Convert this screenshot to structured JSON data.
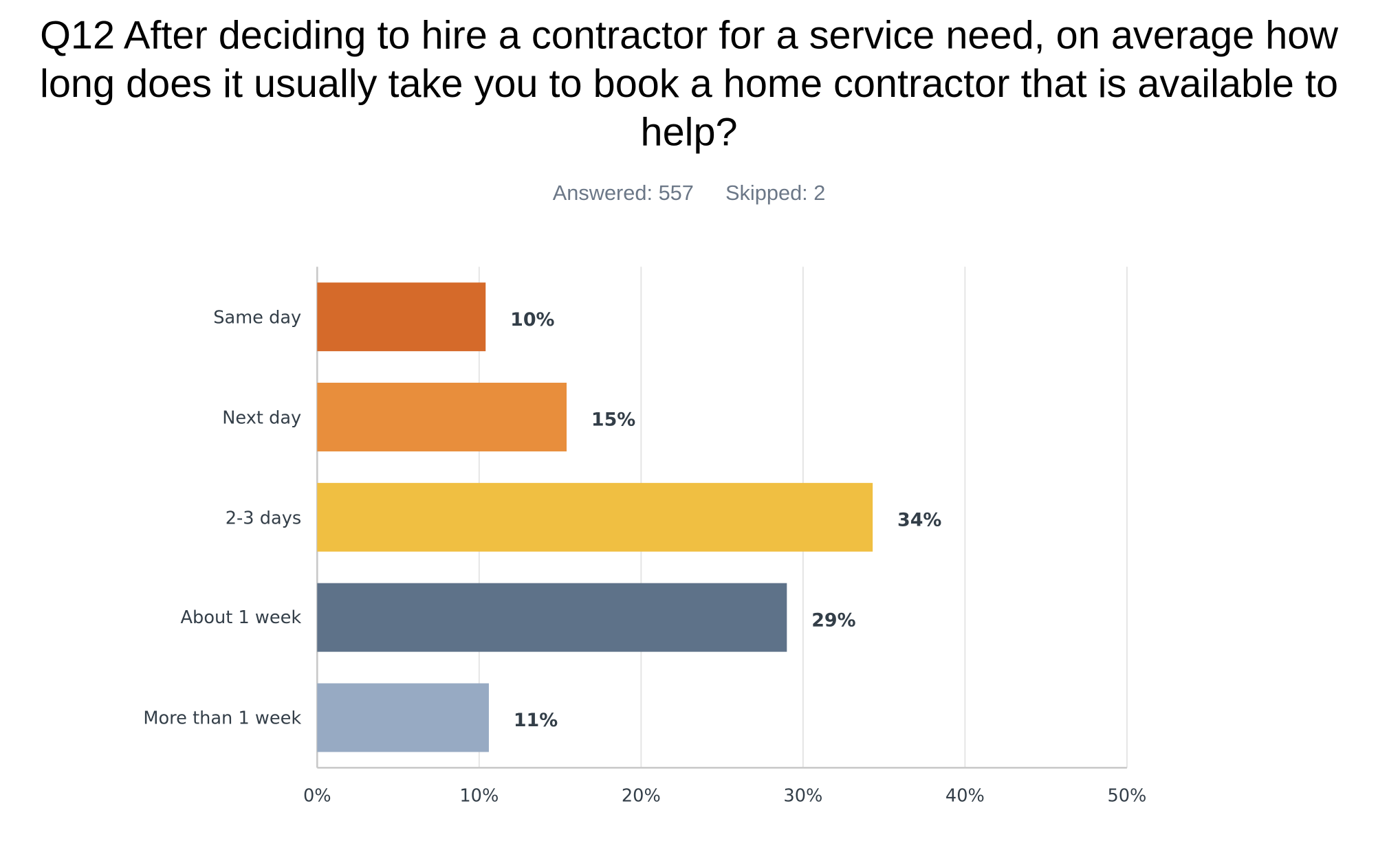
{
  "chart_data": {
    "type": "bar",
    "orientation": "horizontal",
    "title": "Q12 After deciding to hire a contractor for a service need, on average how long does it usually take you to book a home contractor that is available to help?",
    "answered": "Answered: 557",
    "skipped": "Skipped: 2",
    "categories": [
      "Same day",
      "Next day",
      "2-3 days",
      "About 1 week",
      "More than 1 week"
    ],
    "values": [
      10.4,
      15.4,
      34.3,
      29.0,
      10.6
    ],
    "value_labels": [
      "10%",
      "15%",
      "34%",
      "29%",
      "11%"
    ],
    "colors": [
      "#d56a2a",
      "#e88e3c",
      "#f0bf42",
      "#5e7289",
      "#97aac3"
    ],
    "xlim": [
      0,
      50
    ],
    "xticks": [
      {
        "value": 0,
        "label": "0%"
      },
      {
        "value": 10,
        "label": "10%"
      },
      {
        "value": 20,
        "label": "20%"
      },
      {
        "value": 30,
        "label": "30%"
      },
      {
        "value": 40,
        "label": "40%"
      },
      {
        "value": 50,
        "label": "50%"
      }
    ],
    "grid": true
  }
}
